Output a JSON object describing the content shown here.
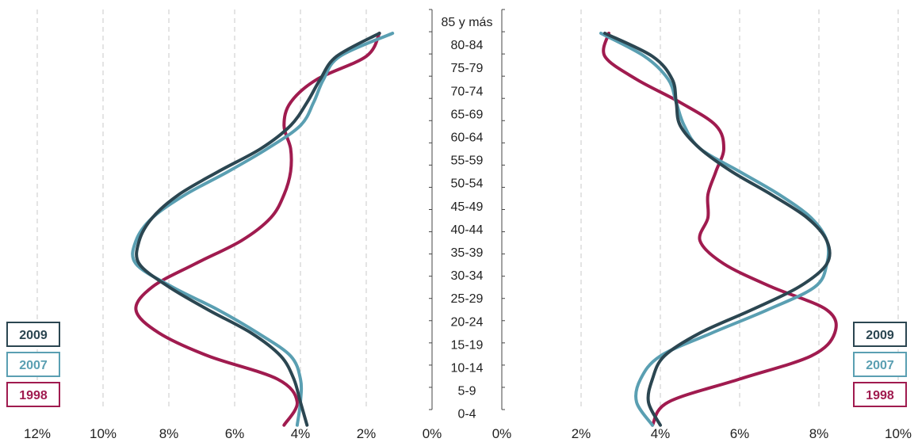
{
  "chart_data": {
    "type": "line",
    "age_groups": [
      "0-4",
      "5-9",
      "10-14",
      "15-19",
      "20-24",
      "25-29",
      "30-34",
      "35-39",
      "40-44",
      "45-49",
      "50-54",
      "55-59",
      "60-64",
      "65-69",
      "70-74",
      "75-79",
      "80-84",
      "85 y más"
    ],
    "xlim": [
      0,
      12
    ],
    "left_ticks": [
      "12%",
      "10%",
      "8%",
      "6%",
      "4%",
      "2%",
      "0%"
    ],
    "right_ticks": [
      "0%",
      "2%",
      "4%",
      "6%",
      "8%",
      "10%"
    ],
    "grid": "vertical dashed",
    "legend_position": "bottom-left and bottom-right",
    "series": [
      {
        "name": "2009",
        "color": "#2b4651",
        "left": [
          3.8,
          4.0,
          4.2,
          4.6,
          5.5,
          6.8,
          8.0,
          8.9,
          8.9,
          8.5,
          7.7,
          6.5,
          5.2,
          4.3,
          3.8,
          3.4,
          2.9,
          1.6
        ],
        "right": [
          4.0,
          3.7,
          3.8,
          4.1,
          5.0,
          6.3,
          7.5,
          8.2,
          8.2,
          7.7,
          6.8,
          5.8,
          5.0,
          4.5,
          4.4,
          4.3,
          3.8,
          2.6
        ]
      },
      {
        "name": "2007",
        "color": "#5a9fb2",
        "left": [
          4.1,
          4.0,
          4.0,
          4.3,
          5.3,
          6.5,
          7.9,
          9.0,
          9.0,
          8.5,
          7.5,
          6.2,
          5.0,
          4.0,
          3.6,
          3.3,
          2.8,
          1.2
        ],
        "right": [
          3.8,
          3.4,
          3.5,
          4.0,
          5.3,
          6.7,
          7.9,
          8.2,
          8.2,
          7.8,
          7.0,
          6.0,
          5.0,
          4.6,
          4.4,
          4.2,
          3.6,
          2.5
        ]
      },
      {
        "name": "1998",
        "color": "#a01b4f",
        "left": [
          4.5,
          4.1,
          4.7,
          6.8,
          8.3,
          9.0,
          8.5,
          7.2,
          5.8,
          4.9,
          4.5,
          4.3,
          4.3,
          4.5,
          4.3,
          3.5,
          2.0,
          1.6
        ],
        "right": [
          3.8,
          4.2,
          6.0,
          7.8,
          8.4,
          8.2,
          6.8,
          5.6,
          5.0,
          5.2,
          5.2,
          5.4,
          5.6,
          5.4,
          4.5,
          3.4,
          2.6,
          2.7
        ]
      }
    ]
  }
}
